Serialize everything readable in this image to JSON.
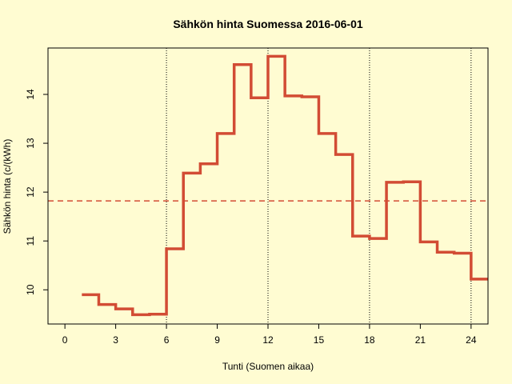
{
  "chart_data": {
    "type": "line",
    "step": true,
    "title": "Sähkön hinta Suomessa 2016-06-01",
    "xlabel": "Tunti (Suomen aikaa)",
    "ylabel": "Sähkön hinta (c/(kWh)",
    "xlim": [
      -1,
      25
    ],
    "ylim": [
      9.3,
      14.95
    ],
    "xticks": [
      0,
      3,
      6,
      9,
      12,
      15,
      18,
      21,
      24
    ],
    "xtick_labels": [
      "0",
      "3",
      "6",
      "9",
      "12",
      "15",
      "18",
      "21",
      "24"
    ],
    "yticks": [
      10,
      11,
      12,
      13,
      14
    ],
    "ytick_labels": [
      "10",
      "11",
      "12",
      "13",
      "14"
    ],
    "vlines": [
      6,
      12,
      18,
      24
    ],
    "mean_line": 11.82,
    "series": [
      {
        "x": [
          1,
          2,
          3,
          4,
          5,
          6,
          7,
          8,
          9,
          10,
          11,
          12,
          13,
          14,
          15,
          16,
          17,
          18,
          19,
          20,
          21,
          22,
          23,
          24
        ],
        "y": [
          9.9,
          9.7,
          9.61,
          9.49,
          9.5,
          10.84,
          12.39,
          12.58,
          13.2,
          14.61,
          13.93,
          14.78,
          13.97,
          13.95,
          13.2,
          12.77,
          11.1,
          11.05,
          12.2,
          12.21,
          10.98,
          10.77,
          10.75,
          10.22
        ]
      }
    ],
    "line_color": "#d24c34",
    "mean_color": "#d24c34",
    "background": "#fffcd2",
    "grid": false
  }
}
